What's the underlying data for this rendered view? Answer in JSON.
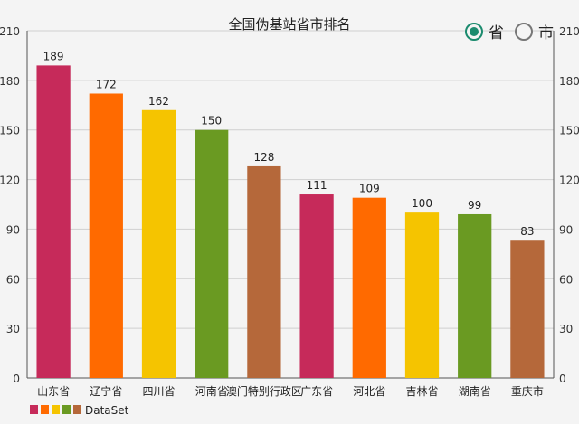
{
  "chart_data": {
    "type": "bar",
    "title": "全国伪基站省市排名",
    "categories": [
      "山东省",
      "辽宁省",
      "四川省",
      "河南省",
      "澳门特别行政区",
      "广东省",
      "河北省",
      "吉林省",
      "湖南省",
      "重庆市"
    ],
    "series": [
      {
        "name": "DataSet",
        "values": [
          189,
          172,
          162,
          150,
          128,
          111,
          109,
          100,
          99,
          83
        ]
      }
    ],
    "bar_colors": [
      "#c62a5a",
      "#ff6a00",
      "#f5c400",
      "#6a9a22",
      "#b5683a"
    ],
    "ylim": [
      0,
      210
    ],
    "yticks": [
      0,
      30,
      60,
      90,
      120,
      150,
      180,
      210
    ],
    "grid": true,
    "legend_position": "bottom-left",
    "xlabel": "",
    "ylabel": ""
  },
  "toggle": {
    "options": [
      {
        "label": "省",
        "checked": true
      },
      {
        "label": "市",
        "checked": false
      }
    ]
  }
}
